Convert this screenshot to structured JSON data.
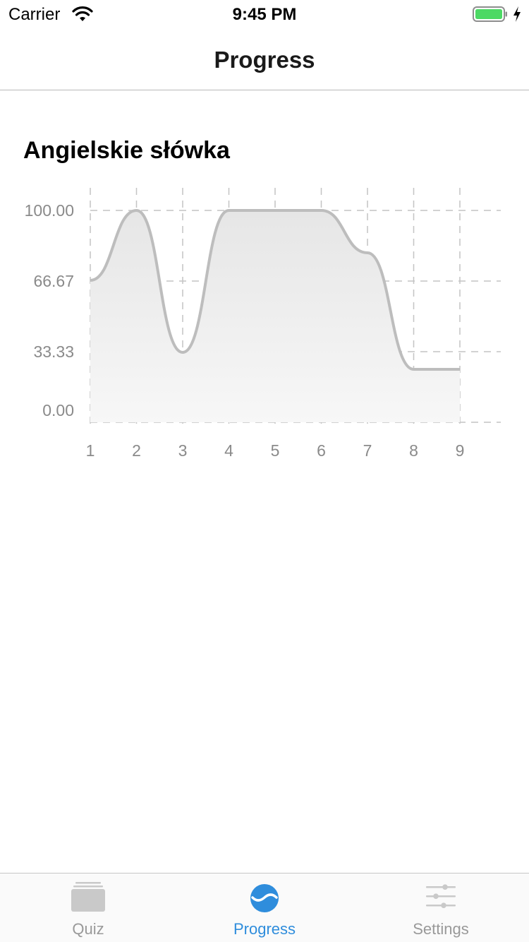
{
  "status_bar": {
    "carrier": "Carrier",
    "time": "9:45 PM",
    "battery_color": "#4cd964"
  },
  "nav": {
    "title": "Progress"
  },
  "section": {
    "title": "Angielskie słówka"
  },
  "chart_data": {
    "type": "area",
    "x": [
      1,
      2,
      3,
      4,
      5,
      6,
      7,
      8,
      9
    ],
    "values": [
      67,
      100,
      33,
      100,
      100,
      100,
      80,
      25,
      25
    ],
    "ylim": [
      0,
      100
    ],
    "yticks": [
      "100.00",
      "66.67",
      "33.33",
      "0.00"
    ],
    "xticks": [
      "1",
      "2",
      "3",
      "4",
      "5",
      "6",
      "7",
      "8",
      "9"
    ],
    "grid": true,
    "line_color": "#bdbdbd",
    "fill_top_color": "#e6e6e6",
    "fill_bottom_color": "#f7f7f7"
  },
  "tabs": [
    {
      "label": "Quiz",
      "icon": "quiz-cards-icon",
      "active": false
    },
    {
      "label": "Progress",
      "icon": "progress-wave-icon",
      "active": true
    },
    {
      "label": "Settings",
      "icon": "settings-sliders-icon",
      "active": false
    }
  ],
  "accent_color": "#2f8ddc"
}
